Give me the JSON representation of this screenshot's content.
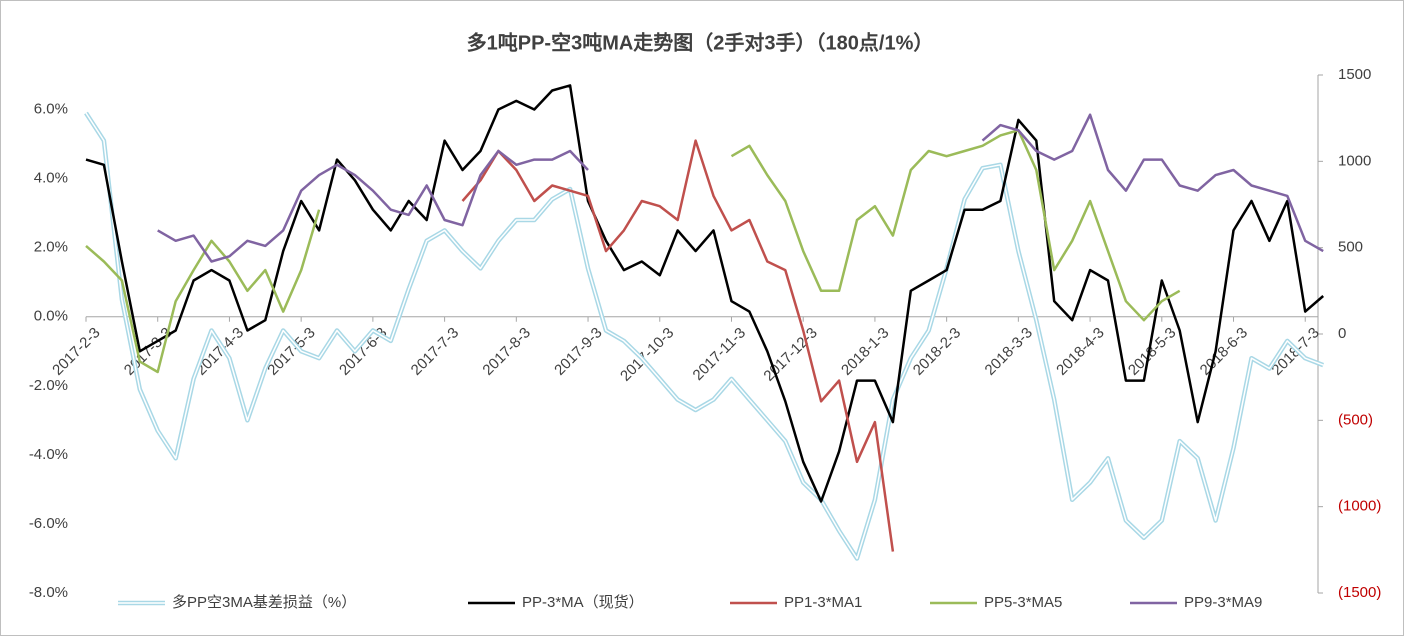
{
  "chart_data": {
    "type": "line",
    "title": "多1吨PP-空3吨MA走势图（2手对3手）（180点/1%）",
    "categories": [
      "2017-2-3",
      null,
      null,
      null,
      "2017-3-3",
      null,
      null,
      null,
      "2017-4-3",
      null,
      null,
      null,
      "2017-5-3",
      null,
      null,
      null,
      "2017-6-3",
      null,
      null,
      null,
      "2017-7-3",
      null,
      null,
      null,
      "2017-8-3",
      null,
      null,
      null,
      "2017-9-3",
      null,
      null,
      null,
      "2017-10-3",
      null,
      null,
      null,
      "2017-11-3",
      null,
      null,
      null,
      "2017-12-3",
      null,
      null,
      null,
      "2018-1-3",
      null,
      null,
      null,
      "2018-2-3",
      null,
      null,
      null,
      "2018-3-3",
      null,
      null,
      null,
      "2018-4-3",
      null,
      null,
      null,
      "2018-5-3",
      null,
      null,
      null,
      "2018-6-3",
      null,
      null,
      null,
      "2018-7-3",
      null
    ],
    "ylim": [
      -8,
      7
    ],
    "yticks": [
      {
        "value": -8,
        "label": "-8.0%"
      },
      {
        "value": -6,
        "label": "-6.0%"
      },
      {
        "value": -4,
        "label": "-4.0%"
      },
      {
        "value": -2,
        "label": "-2.0%"
      },
      {
        "value": 0,
        "label": "0.0%"
      },
      {
        "value": 2,
        "label": "2.0%"
      },
      {
        "value": 4,
        "label": "4.0%"
      },
      {
        "value": 6,
        "label": "6.0%"
      }
    ],
    "y2lim": [
      -1500,
      1500
    ],
    "y2ticks": [
      {
        "value": -1500,
        "label": "(1500)"
      },
      {
        "value": -1000,
        "label": "(1000)"
      },
      {
        "value": -500,
        "label": "(500)"
      },
      0,
      500,
      1000,
      1500
    ],
    "y2_negative_label_color": "#c00000",
    "grid": false,
    "legend": "bottom",
    "series": [
      {
        "name": "多PP空3MA基差损益（%）",
        "color": "#a9d8e6",
        "values": [
          5.9,
          5.1,
          0.5,
          -2.1,
          -3.3,
          -4.1,
          -1.8,
          -0.4,
          -1.2,
          -3.0,
          -1.5,
          -0.4,
          -1.0,
          -1.2,
          -0.4,
          -1.0,
          -0.4,
          -0.7,
          0.8,
          2.2,
          2.5,
          1.9,
          1.4,
          2.2,
          2.8,
          2.8,
          3.4,
          3.7,
          1.4,
          -0.4,
          -0.7,
          -1.2,
          -1.8,
          -2.4,
          -2.7,
          -2.4,
          -1.8,
          -2.4,
          -3.0,
          -3.6,
          -4.8,
          -5.3,
          -6.2,
          -7.0,
          -5.3,
          -2.4,
          -1.2,
          -0.4,
          1.4,
          3.4,
          4.3,
          4.4,
          1.9,
          -0.1,
          -2.4,
          -5.3,
          -4.8,
          -4.1,
          -5.9,
          -6.4,
          -5.9,
          -3.6,
          -4.1,
          -5.9,
          -3.8,
          -1.2,
          -1.5,
          -0.7,
          -1.2,
          -1.4
        ]
      },
      {
        "name": "PP-3*MA（现货）",
        "color": "#000000",
        "axis": "y2",
        "values": [
          1010,
          980,
          420,
          -100,
          -40,
          20,
          310,
          370,
          310,
          20,
          80,
          480,
          770,
          600,
          1010,
          890,
          720,
          600,
          770,
          660,
          1120,
          950,
          1060,
          1300,
          1350,
          1300,
          1410,
          1440,
          770,
          540,
          370,
          420,
          340,
          600,
          480,
          600,
          190,
          130,
          -100,
          -390,
          -740,
          -970,
          -680,
          -270,
          -270,
          -510,
          250,
          310,
          370,
          720,
          720,
          770,
          1240,
          1120,
          190,
          80,
          370,
          310,
          -270,
          -270,
          310,
          20,
          -510,
          -100,
          600,
          770,
          540,
          770,
          130,
          220
        ]
      },
      {
        "name": "PP1-3*MA1",
        "color": "#c0504d",
        "axis": "y2",
        "values": [
          null,
          null,
          null,
          null,
          null,
          null,
          null,
          null,
          null,
          null,
          null,
          null,
          null,
          null,
          null,
          null,
          null,
          null,
          null,
          null,
          null,
          770,
          890,
          1060,
          950,
          770,
          860,
          830,
          800,
          480,
          600,
          770,
          740,
          660,
          1120,
          800,
          600,
          660,
          420,
          370,
          20,
          -390,
          -270,
          -740,
          -510,
          -1260,
          null,
          null,
          null,
          null,
          null,
          null,
          null,
          null,
          null,
          null,
          null,
          null,
          null,
          null,
          null,
          null,
          null,
          null,
          null,
          null,
          null,
          null,
          null,
          null
        ]
      },
      {
        "name": "PP5-3*MA5",
        "color": "#9bbb59",
        "axis": "y2",
        "values": [
          510,
          420,
          310,
          -160,
          -220,
          190,
          370,
          540,
          420,
          250,
          370,
          130,
          370,
          720,
          null,
          null,
          null,
          null,
          null,
          null,
          null,
          null,
          null,
          null,
          null,
          null,
          null,
          null,
          null,
          null,
          null,
          null,
          null,
          null,
          null,
          null,
          1030,
          1090,
          920,
          770,
          480,
          250,
          250,
          660,
          740,
          570,
          950,
          1060,
          1030,
          1060,
          1090,
          1150,
          1180,
          950,
          370,
          540,
          770,
          480,
          190,
          80,
          190,
          250,
          null,
          null,
          null,
          null,
          null,
          null,
          null,
          null
        ]
      },
      {
        "name": "PP9-3*MA9",
        "color": "#8064a2",
        "axis": "y2",
        "values": [
          null,
          null,
          null,
          null,
          600,
          540,
          570,
          420,
          450,
          540,
          510,
          600,
          830,
          920,
          980,
          920,
          830,
          720,
          690,
          860,
          660,
          630,
          920,
          1060,
          980,
          1010,
          1010,
          1060,
          950,
          null,
          null,
          null,
          null,
          null,
          null,
          null,
          null,
          null,
          null,
          null,
          null,
          null,
          null,
          null,
          null,
          null,
          null,
          null,
          null,
          null,
          1120,
          1210,
          1180,
          1060,
          1010,
          1060,
          1270,
          950,
          830,
          1010,
          1010,
          860,
          830,
          920,
          950,
          860,
          830,
          800,
          540,
          480
        ]
      }
    ]
  }
}
